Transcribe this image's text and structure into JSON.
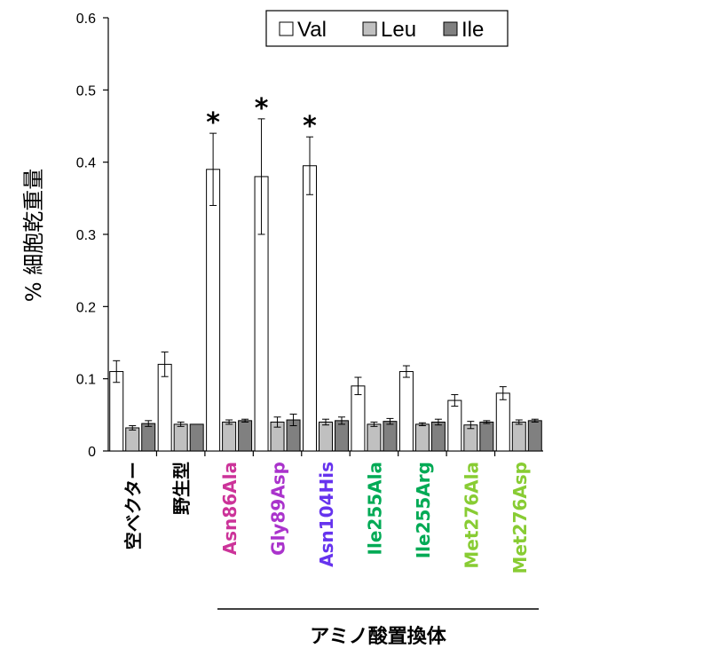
{
  "chart_data": {
    "type": "bar",
    "ylabel": "% 細胞乾重量",
    "ylim": [
      0,
      0.6
    ],
    "yticks": [
      "0",
      "0.1",
      "0.2",
      "0.3",
      "0.4",
      "0.5",
      "0.6"
    ],
    "categories": [
      "空ベクター",
      "野生型",
      "Asn86Ala",
      "Gly89Asp",
      "Asn104His",
      "Ile255Ala",
      "Ile255Arg",
      "Met276Ala",
      "Met276Asp"
    ],
    "category_colors": [
      "#000000",
      "#000000",
      "#cc3399",
      "#aa33cc",
      "#6633ee",
      "#00aa55",
      "#00aa55",
      "#88cc33",
      "#88cc33"
    ],
    "series": [
      {
        "name": "Val",
        "color": "#ffffff",
        "values": [
          0.11,
          0.12,
          0.39,
          0.38,
          0.395,
          0.09,
          0.11,
          0.07,
          0.08
        ],
        "errors": [
          0.015,
          0.017,
          0.05,
          0.08,
          0.04,
          0.012,
          0.008,
          0.008,
          0.009
        ]
      },
      {
        "name": "Leu",
        "color": "#c0c0c0",
        "values": [
          0.032,
          0.037,
          0.04,
          0.04,
          0.04,
          0.037,
          0.037,
          0.036,
          0.04
        ],
        "errors": [
          0.003,
          0.003,
          0.003,
          0.007,
          0.004,
          0.003,
          0.002,
          0.005,
          0.003
        ]
      },
      {
        "name": "Ile",
        "color": "#808080",
        "values": [
          0.038,
          0.037,
          0.042,
          0.043,
          0.042,
          0.041,
          0.04,
          0.04,
          0.042
        ],
        "errors": [
          0.004,
          0.0,
          0.002,
          0.008,
          0.005,
          0.004,
          0.004,
          0.002,
          0.002
        ]
      }
    ],
    "significance_marker": "*",
    "significant_categories": [
      "Asn86Ala",
      "Gly89Asp",
      "Asn104His"
    ],
    "group_label": "アミノ酸置換体",
    "legend_position": "top-right"
  }
}
